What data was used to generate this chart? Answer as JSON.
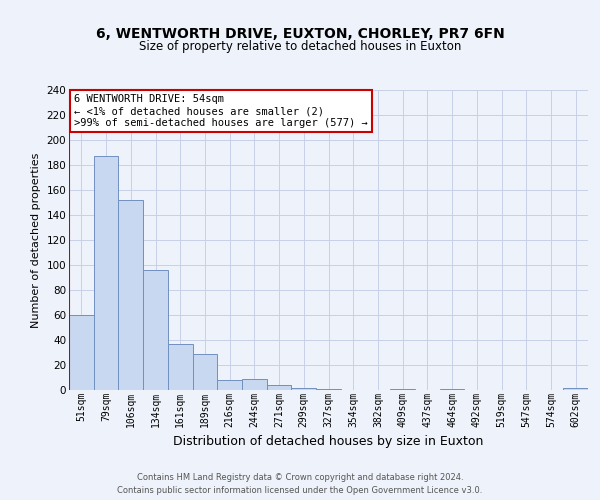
{
  "title1": "6, WENTWORTH DRIVE, EUXTON, CHORLEY, PR7 6FN",
  "title2": "Size of property relative to detached houses in Euxton",
  "xlabel": "Distribution of detached houses by size in Euxton",
  "ylabel": "Number of detached properties",
  "categories": [
    "51sqm",
    "79sqm",
    "106sqm",
    "134sqm",
    "161sqm",
    "189sqm",
    "216sqm",
    "244sqm",
    "271sqm",
    "299sqm",
    "327sqm",
    "354sqm",
    "382sqm",
    "409sqm",
    "437sqm",
    "464sqm",
    "492sqm",
    "519sqm",
    "547sqm",
    "574sqm",
    "602sqm"
  ],
  "values": [
    60,
    187,
    152,
    96,
    37,
    29,
    8,
    9,
    4,
    2,
    1,
    0,
    0,
    1,
    0,
    1,
    0,
    0,
    0,
    0,
    2
  ],
  "bar_color": "#c8d8f0",
  "bar_edge_color": "#7090c0",
  "highlight_color": "#cc0000",
  "annotation_line1": "6 WENTWORTH DRIVE: 54sqm",
  "annotation_line2": "← <1% of detached houses are smaller (2)",
  "annotation_line3": ">99% of semi-detached houses are larger (577) →",
  "annotation_box_color": "#ffffff",
  "annotation_box_edge_color": "#cc0000",
  "ylim": [
    0,
    240
  ],
  "yticks": [
    0,
    20,
    40,
    60,
    80,
    100,
    120,
    140,
    160,
    180,
    200,
    220,
    240
  ],
  "footer": "Contains HM Land Registry data © Crown copyright and database right 2024.\nContains public sector information licensed under the Open Government Licence v3.0.",
  "bg_color": "#eef2fa",
  "grid_color": "#c8d0e8",
  "title1_fontsize": 10,
  "title2_fontsize": 8.5,
  "ylabel_fontsize": 8,
  "xlabel_fontsize": 9,
  "tick_fontsize": 7,
  "ytick_fontsize": 7.5,
  "footer_fontsize": 6,
  "ann_fontsize": 7.5
}
